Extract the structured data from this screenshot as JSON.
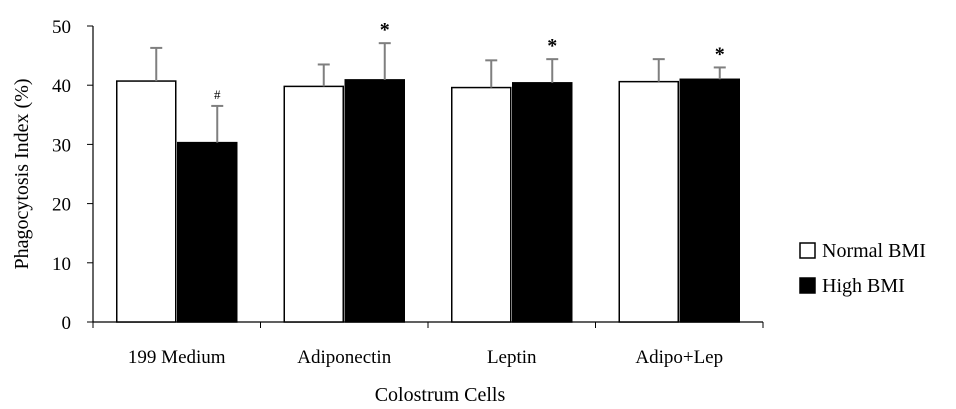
{
  "chart_data": {
    "type": "bar",
    "title": "",
    "xlabel": "Colostrum Cells",
    "ylabel": "Phagocytosis Index (%)",
    "ylim": [
      0,
      50
    ],
    "yticks": [
      0,
      10,
      20,
      30,
      40,
      50
    ],
    "grid": false,
    "legend_position": "right",
    "categories": [
      "199 Medium",
      "Adiponectin",
      "Leptin",
      "Adipo+Lep"
    ],
    "series": [
      {
        "name": "Normal BMI",
        "color": "#ffffff",
        "values": [
          40.7,
          39.8,
          39.6,
          40.6
        ],
        "error": [
          5.6,
          3.7,
          4.6,
          3.8
        ],
        "annotations": [
          "",
          "",
          "",
          ""
        ]
      },
      {
        "name": "High BMI",
        "color": "#000000",
        "values": [
          30.3,
          40.9,
          40.4,
          41.0
        ],
        "error": [
          6.2,
          6.2,
          4.0,
          2.0
        ],
        "annotations": [
          "#",
          "*",
          "*",
          "*"
        ]
      }
    ]
  }
}
